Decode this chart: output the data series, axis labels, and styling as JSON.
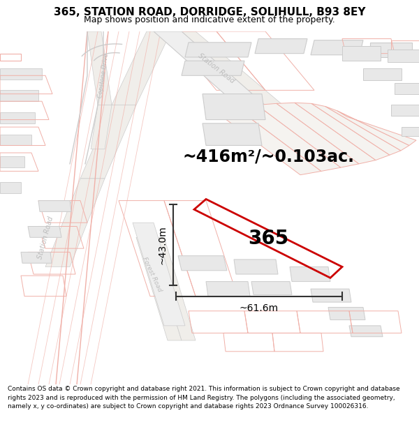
{
  "title": "365, STATION ROAD, DORRIDGE, SOLIHULL, B93 8EY",
  "subtitle": "Map shows position and indicative extent of the property.",
  "area_label": "~416m²/~0.103ac.",
  "plot_number": "365",
  "dim_width": "~61.6m",
  "dim_height": "~43.0m",
  "footer": "Contains OS data © Crown copyright and database right 2021. This information is subject to Crown copyright and database rights 2023 and is reproduced with the permission of HM Land Registry. The polygons (including the associated geometry, namely x, y co-ordinates) are subject to Crown copyright and database rights 2023 Ordnance Survey 100026316.",
  "bg_color": "#ffffff",
  "map_bg": "#f7f7f7",
  "building_fill": "#e8e8e8",
  "building_edge": "#cccccc",
  "road_fill": "#ffffff",
  "road_edge_pink": "#f0b0a8",
  "road_edge_gray": "#cccccc",
  "property_color": "#cc0000",
  "text_color": "#000000",
  "road_label_color": "#b8b8b8",
  "title_fontsize": 11,
  "subtitle_fontsize": 9,
  "area_fontsize": 17,
  "plot_num_fontsize": 20,
  "dim_fontsize": 10,
  "footer_fontsize": 6.5
}
